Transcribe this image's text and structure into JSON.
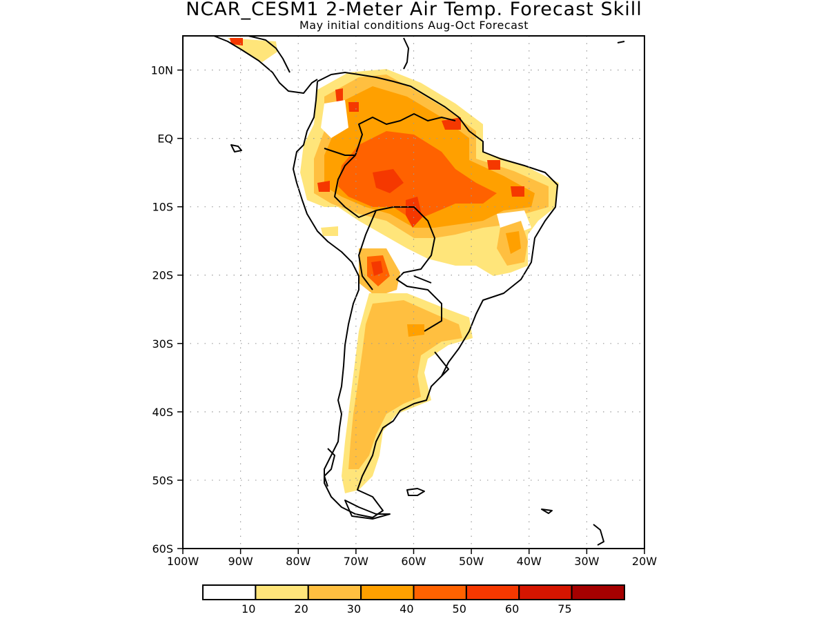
{
  "title": "NCAR_CESM1 2-Meter Air Temp. Forecast Skill",
  "subtitle": "May initial conditions  Aug-Oct Forecast",
  "map": {
    "lon_range": [
      -100,
      -20
    ],
    "lat_range": [
      -60,
      15
    ],
    "lat_ticks": [
      {
        "value": 10,
        "label": "10N"
      },
      {
        "value": 0,
        "label": "EQ"
      },
      {
        "value": -10,
        "label": "10S"
      },
      {
        "value": -20,
        "label": "20S"
      },
      {
        "value": -30,
        "label": "30S"
      },
      {
        "value": -40,
        "label": "40S"
      },
      {
        "value": -50,
        "label": "50S"
      },
      {
        "value": -60,
        "label": "60S"
      }
    ],
    "lon_ticks": [
      {
        "value": -100,
        "label": "100W"
      },
      {
        "value": -90,
        "label": "90W"
      },
      {
        "value": -80,
        "label": "80W"
      },
      {
        "value": -70,
        "label": "70W"
      },
      {
        "value": -60,
        "label": "60W"
      },
      {
        "value": -50,
        "label": "50W"
      },
      {
        "value": -40,
        "label": "40W"
      },
      {
        "value": -30,
        "label": "30W"
      },
      {
        "value": -20,
        "label": "20W"
      }
    ],
    "grid": "dotted"
  },
  "colorbar": {
    "colors": [
      "#ffffff",
      "#ffe57a",
      "#ffbf40",
      "#ffa000",
      "#ff6200",
      "#f53800",
      "#d51500",
      "#a50000"
    ],
    "labels": [
      "10",
      "20",
      "30",
      "40",
      "50",
      "60",
      "75"
    ]
  }
}
